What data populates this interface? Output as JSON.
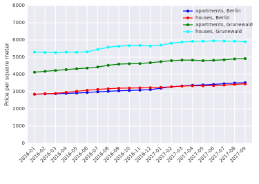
{
  "chart_data": {
    "type": "line",
    "y_label": "Price per square meter",
    "categories": [
      "2016-01",
      "2016-02",
      "2016-03",
      "2016-04",
      "2016-05",
      "2016-06",
      "2016-07",
      "2016-08",
      "2016-09",
      "2016-10",
      "2016-11",
      "2016-12",
      "2017-01",
      "2017-02",
      "2017-03",
      "2017-04",
      "2017-05",
      "2017-06",
      "2017-07",
      "2017-08",
      "2017-09"
    ],
    "series": [
      {
        "name": "apartments, Berlin",
        "color": "#0000ff",
        "values": [
          2850,
          2870,
          2880,
          2900,
          2920,
          2950,
          2990,
          3020,
          3050,
          3070,
          3090,
          3120,
          3200,
          3280,
          3330,
          3370,
          3390,
          3420,
          3460,
          3500,
          3520
        ]
      },
      {
        "name": "houses, Berlin",
        "color": "#ff0000",
        "values": [
          2850,
          2880,
          2900,
          2960,
          3020,
          3080,
          3130,
          3170,
          3200,
          3210,
          3220,
          3230,
          3250,
          3280,
          3320,
          3340,
          3340,
          3350,
          3380,
          3420,
          3450
        ]
      },
      {
        "name": "apartments, Grunewald",
        "color": "#008000",
        "values": [
          4130,
          4180,
          4230,
          4280,
          4330,
          4370,
          4430,
          4530,
          4600,
          4620,
          4630,
          4680,
          4740,
          4800,
          4830,
          4830,
          4800,
          4820,
          4850,
          4900,
          4920
        ]
      },
      {
        "name": "houses, Grunewald",
        "color": "#00ffff",
        "values": [
          5300,
          5280,
          5270,
          5300,
          5290,
          5310,
          5450,
          5580,
          5640,
          5670,
          5680,
          5650,
          5700,
          5810,
          5880,
          5920,
          5930,
          5950,
          5940,
          5930,
          5900
        ]
      }
    ],
    "ylim": [
      0,
      8000
    ],
    "yticks": [
      0,
      1000,
      2000,
      3000,
      4000,
      5000,
      6000,
      7000,
      8000
    ],
    "grid": true,
    "legend": "upper-right"
  }
}
